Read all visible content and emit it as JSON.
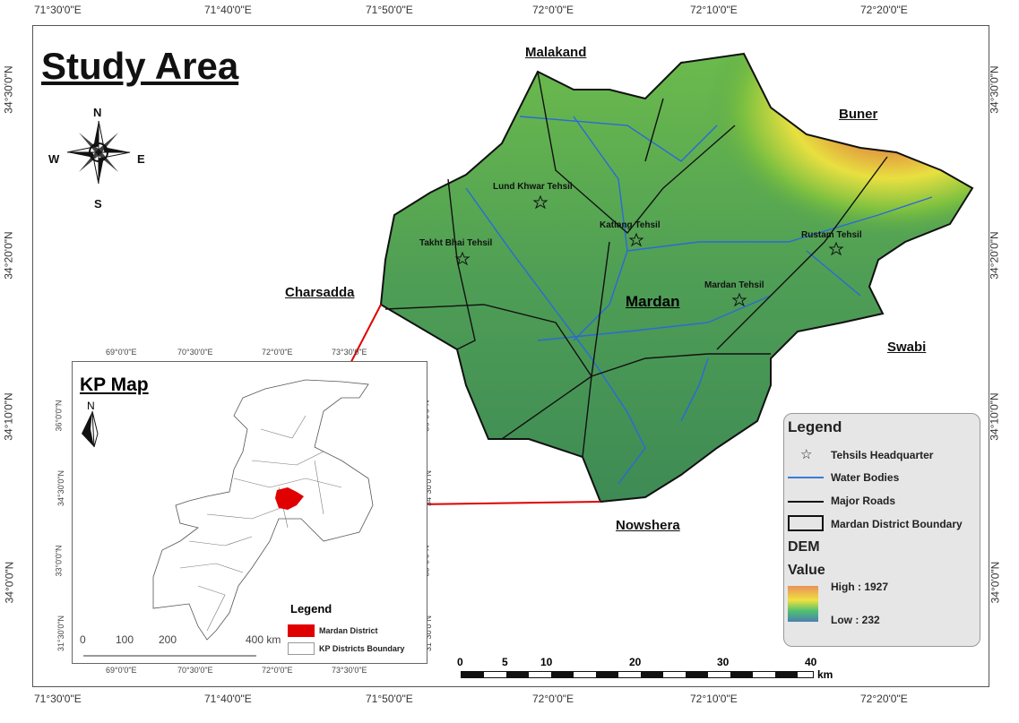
{
  "title": "Study Area",
  "lon_labels": [
    "71°30'0\"E",
    "71°40'0\"E",
    "71°50'0\"E",
    "72°0'0\"E",
    "72°10'0\"E",
    "72°20'0\"E"
  ],
  "lat_labels": [
    "34°30'0\"N",
    "34°20'0\"N",
    "34°10'0\"N",
    "34°0'0\"N"
  ],
  "compass": {
    "n": "N",
    "s": "S",
    "e": "E",
    "w": "W"
  },
  "districts": {
    "malakand": "Malakand",
    "buner": "Buner",
    "charsadda": "Charsadda",
    "swabi": "Swabi",
    "nowshera": "Nowshera",
    "mardan": "Mardan"
  },
  "tehsils": [
    "Lund Khwar Tehsil",
    "Takht Bhai Tehsil",
    "Katlang Tehsil",
    "Rustam Tehsil",
    "Mardan Tehsil"
  ],
  "legend": {
    "title": "Legend",
    "items": [
      "Tehsils Headquarter",
      "Water Bodies",
      "Major Roads",
      "Mardan District Boundary"
    ],
    "dem": "DEM",
    "value": "Value",
    "high": "High : 1927",
    "low": "Low : 232",
    "water_color": "#3a7bd5",
    "road_color": "#111111"
  },
  "scale": {
    "ticks": [
      "0",
      "5",
      "10",
      "20",
      "30",
      "40"
    ],
    "unit": "km"
  },
  "inset": {
    "title": "KP Map",
    "north": "N",
    "lon": [
      "69°0'0\"E",
      "70°30'0\"E",
      "72°0'0\"E",
      "73°30'0\"E"
    ],
    "lat": [
      "36°0'0\"N",
      "34°30'0\"N",
      "33°0'0\"N",
      "31°30'0\"N"
    ],
    "scale": [
      "0",
      "100",
      "200",
      "400 km"
    ],
    "legend_title": "Legend",
    "legend_items": [
      "Mardan District",
      "KP Districts Boundary"
    ],
    "highlight_color": "#e00000"
  }
}
